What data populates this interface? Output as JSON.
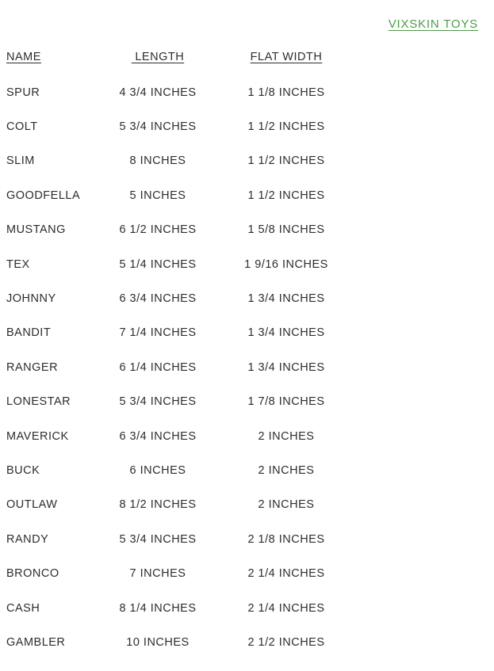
{
  "header": {
    "link_label": "VIXSKIN TOYS",
    "link_color": "#4f9b4a"
  },
  "colors": {
    "text": "#2d2d2d",
    "background": "#ffffff",
    "accent_green": "#4f9b4a"
  },
  "table": {
    "columns": [
      "NAME",
      " LENGTH",
      "FLAT WIDTH"
    ],
    "rows": [
      {
        "name": "SPUR",
        "length": "4 3/4 INCHES",
        "flat_width": "1 1/8 INCHES"
      },
      {
        "name": "COLT",
        "length": "5 3/4 INCHES",
        "flat_width": "1 1/2 INCHES"
      },
      {
        "name": "SLIM",
        "length": "8 INCHES",
        "flat_width": "1 1/2 INCHES"
      },
      {
        "name": "GOODFELLA",
        "length": "5 INCHES",
        "flat_width": "1 1/2 INCHES"
      },
      {
        "name": "MUSTANG",
        "length": "6 1/2 INCHES",
        "flat_width": "1 5/8 INCHES"
      },
      {
        "name": "TEX",
        "length": "5 1/4 INCHES",
        "flat_width": "1 9/16 INCHES"
      },
      {
        "name": "JOHNNY",
        "length": "6 3/4 INCHES",
        "flat_width": "1 3/4 INCHES"
      },
      {
        "name": "BANDIT",
        "length": "7 1/4 INCHES",
        "flat_width": "1 3/4 INCHES"
      },
      {
        "name": "RANGER",
        "length": "6 1/4 INCHES",
        "flat_width": "1 3/4 INCHES"
      },
      {
        "name": "LONESTAR",
        "length": "5 3/4 INCHES",
        "flat_width": "1 7/8 INCHES"
      },
      {
        "name": "MAVERICK",
        "length": "6 3/4 INCHES",
        "flat_width": "2 INCHES"
      },
      {
        "name": "BUCK",
        "length": "6 INCHES",
        "flat_width": "2 INCHES"
      },
      {
        "name": "OUTLAW",
        "length": "8 1/2 INCHES",
        "flat_width": "2 INCHES"
      },
      {
        "name": "RANDY",
        "length": "5 3/4 INCHES",
        "flat_width": "2 1/8 INCHES"
      },
      {
        "name": "BRONCO",
        "length": "7 INCHES",
        "flat_width": "2 1/4 INCHES"
      },
      {
        "name": "CASH",
        "length": "8 1/4 INCHES",
        "flat_width": "2 1/4 INCHES"
      },
      {
        "name": "GAMBLER",
        "length": "10 INCHES",
        "flat_width": "2 1/2 INCHES"
      }
    ]
  }
}
